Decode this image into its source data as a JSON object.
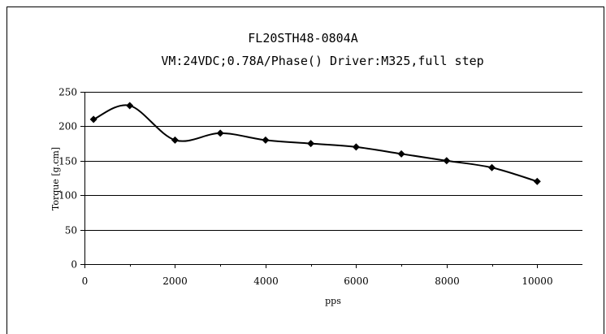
{
  "chart_data": {
    "type": "line",
    "title": "FL20STH48-0804A",
    "subtitle": "VM:24VDC;0.78A/Phase() Driver:M325,full step",
    "xlabel": "pps",
    "ylabel": "Torque [g.cm]",
    "xlim": [
      0,
      11000
    ],
    "ylim": [
      0,
      250
    ],
    "xticks": [
      0,
      2000,
      4000,
      6000,
      8000,
      10000
    ],
    "yticks": [
      0,
      50,
      100,
      150,
      200,
      250
    ],
    "grid": "horizontal",
    "legend": "none",
    "series": [
      {
        "x": [
          200,
          1000,
          2000,
          3000,
          4000,
          5000,
          6000,
          7000,
          8000,
          9000,
          10000
        ],
        "y": [
          210,
          230,
          180,
          190,
          180,
          175,
          170,
          160,
          150,
          140,
          120
        ]
      }
    ],
    "colors": {
      "line": "#000000",
      "marker": "#000000",
      "grid": "#000000"
    }
  }
}
